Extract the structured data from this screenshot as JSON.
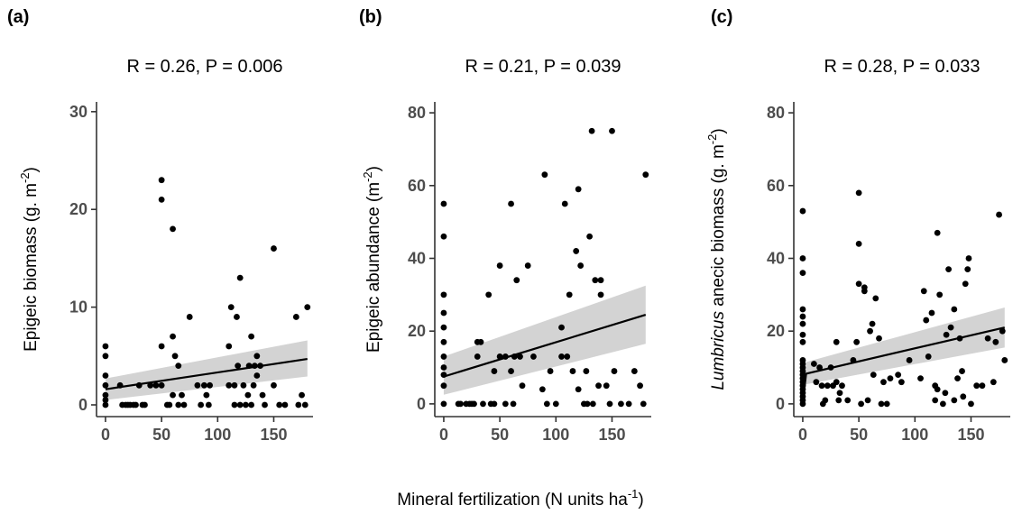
{
  "figure": {
    "x_axis_title": "Mineral fertilization (N units ha",
    "x_axis_title_sup": "-1",
    "x_axis_title_end": ")"
  },
  "chart_data": [
    {
      "type": "scatter",
      "panel_label": "(a)",
      "stat_text": "R = 0.26, P = 0.006",
      "ylabel_prefix": "",
      "ylabel_text": "Epigeic biomass (g. m",
      "ylabel_sup": "-2",
      "ylabel_end": ")",
      "xlim": [
        -8,
        185
      ],
      "ylim": [
        -1.2,
        31
      ],
      "x_ticks": [
        0,
        50,
        100,
        150
      ],
      "y_ticks": [
        0,
        10,
        20,
        30
      ],
      "fit": {
        "x": [
          0,
          180
        ],
        "y": [
          1.6,
          4.7
        ],
        "lower": [
          0.5,
          2.9
        ],
        "upper": [
          2.7,
          6.6
        ]
      },
      "points": [
        [
          0,
          0
        ],
        [
          0,
          0.5
        ],
        [
          0,
          1
        ],
        [
          0,
          2
        ],
        [
          0,
          3
        ],
        [
          0,
          5
        ],
        [
          0,
          6
        ],
        [
          13,
          2
        ],
        [
          15,
          0
        ],
        [
          18,
          0
        ],
        [
          20,
          0
        ],
        [
          22,
          0
        ],
        [
          25,
          0
        ],
        [
          27,
          0
        ],
        [
          30,
          2
        ],
        [
          33,
          0
        ],
        [
          35,
          0
        ],
        [
          40,
          2
        ],
        [
          45,
          2
        ],
        [
          50,
          2
        ],
        [
          50,
          6
        ],
        [
          50,
          21
        ],
        [
          50,
          23
        ],
        [
          55,
          0
        ],
        [
          57,
          0
        ],
        [
          60,
          18
        ],
        [
          60,
          7
        ],
        [
          60,
          1
        ],
        [
          62,
          5
        ],
        [
          65,
          4
        ],
        [
          65,
          0
        ],
        [
          68,
          1
        ],
        [
          70,
          0
        ],
        [
          75,
          9
        ],
        [
          82,
          2
        ],
        [
          85,
          0
        ],
        [
          88,
          2
        ],
        [
          90,
          1
        ],
        [
          92,
          0
        ],
        [
          93,
          2
        ],
        [
          110,
          2
        ],
        [
          110,
          6
        ],
        [
          112,
          10
        ],
        [
          115,
          2
        ],
        [
          115,
          0
        ],
        [
          117,
          9
        ],
        [
          118,
          4
        ],
        [
          120,
          13
        ],
        [
          120,
          0
        ],
        [
          123,
          2
        ],
        [
          125,
          0
        ],
        [
          127,
          1
        ],
        [
          128,
          4
        ],
        [
          130,
          7
        ],
        [
          130,
          0
        ],
        [
          132,
          2
        ],
        [
          133,
          4
        ],
        [
          135,
          3
        ],
        [
          135,
          5
        ],
        [
          138,
          4
        ],
        [
          140,
          1
        ],
        [
          142,
          0
        ],
        [
          150,
          16
        ],
        [
          150,
          2
        ],
        [
          155,
          0
        ],
        [
          160,
          0
        ],
        [
          170,
          9
        ],
        [
          172,
          0
        ],
        [
          175,
          1
        ],
        [
          178,
          0
        ],
        [
          180,
          10
        ]
      ]
    },
    {
      "type": "scatter",
      "panel_label": "(b)",
      "stat_text": "R = 0.21, P = 0.039",
      "ylabel_prefix": "",
      "ylabel_text": "Epigeic abundance (m",
      "ylabel_sup": "-2",
      "ylabel_end": ")",
      "xlim": [
        -8,
        185
      ],
      "ylim": [
        -3.5,
        83
      ],
      "x_ticks": [
        0,
        50,
        100,
        150
      ],
      "y_ticks": [
        0,
        20,
        40,
        60,
        80
      ],
      "fit": {
        "x": [
          0,
          180
        ],
        "y": [
          7.5,
          24.5
        ],
        "lower": [
          2.5,
          16.5
        ],
        "upper": [
          13,
          32.5
        ]
      },
      "points": [
        [
          0,
          0
        ],
        [
          0,
          5
        ],
        [
          0,
          8
        ],
        [
          0,
          10
        ],
        [
          0,
          13
        ],
        [
          0,
          17
        ],
        [
          0,
          21
        ],
        [
          0,
          25
        ],
        [
          0,
          30
        ],
        [
          0,
          46
        ],
        [
          0,
          55
        ],
        [
          13,
          0
        ],
        [
          15,
          0
        ],
        [
          20,
          0
        ],
        [
          23,
          0
        ],
        [
          25,
          0
        ],
        [
          27,
          0
        ],
        [
          30,
          13
        ],
        [
          30,
          17
        ],
        [
          33,
          17
        ],
        [
          35,
          0
        ],
        [
          40,
          30
        ],
        [
          42,
          0
        ],
        [
          45,
          9
        ],
        [
          45,
          0
        ],
        [
          50,
          38
        ],
        [
          50,
          13
        ],
        [
          55,
          13
        ],
        [
          55,
          0
        ],
        [
          60,
          55
        ],
        [
          60,
          9
        ],
        [
          62,
          0
        ],
        [
          63,
          13
        ],
        [
          65,
          34
        ],
        [
          68,
          13
        ],
        [
          70,
          5
        ],
        [
          75,
          38
        ],
        [
          80,
          13
        ],
        [
          88,
          4
        ],
        [
          90,
          63
        ],
        [
          92,
          0
        ],
        [
          95,
          9
        ],
        [
          100,
          0
        ],
        [
          105,
          21
        ],
        [
          105,
          13
        ],
        [
          108,
          55
        ],
        [
          110,
          13
        ],
        [
          112,
          30
        ],
        [
          115,
          9
        ],
        [
          118,
          42
        ],
        [
          120,
          59
        ],
        [
          120,
          4
        ],
        [
          122,
          38
        ],
        [
          125,
          0
        ],
        [
          127,
          9
        ],
        [
          128,
          0
        ],
        [
          130,
          46
        ],
        [
          132,
          75
        ],
        [
          133,
          0
        ],
        [
          135,
          34
        ],
        [
          138,
          5
        ],
        [
          140,
          30
        ],
        [
          140,
          34
        ],
        [
          145,
          5
        ],
        [
          148,
          0
        ],
        [
          150,
          75
        ],
        [
          152,
          9
        ],
        [
          158,
          0
        ],
        [
          165,
          0
        ],
        [
          170,
          9
        ],
        [
          175,
          5
        ],
        [
          178,
          0
        ],
        [
          180,
          63
        ]
      ]
    },
    {
      "type": "scatter",
      "panel_label": "(c)",
      "stat_text": "R = 0.28, P = 0.033",
      "ylabel_prefix": "Lumbricus",
      "ylabel_text": " anecic biomass (g. m",
      "ylabel_sup": "-2",
      "ylabel_end": ")",
      "xlim": [
        -8,
        185
      ],
      "ylim": [
        -3.5,
        83
      ],
      "x_ticks": [
        0,
        50,
        100,
        150
      ],
      "y_ticks": [
        0,
        20,
        40,
        60,
        80
      ],
      "fit": {
        "x": [
          0,
          3,
          180
        ],
        "y": [
          0.5,
          8.3,
          21
        ],
        "lower": [
          0,
          5.4,
          15.5
        ],
        "upper": [
          3,
          11.5,
          26.5
        ]
      },
      "points": [
        [
          0,
          0
        ],
        [
          0,
          1
        ],
        [
          0,
          2
        ],
        [
          0,
          3
        ],
        [
          0,
          4
        ],
        [
          0,
          5
        ],
        [
          0,
          6
        ],
        [
          0,
          7
        ],
        [
          0,
          8
        ],
        [
          0,
          9
        ],
        [
          0,
          10
        ],
        [
          0,
          11
        ],
        [
          0,
          12
        ],
        [
          0,
          17
        ],
        [
          0,
          19
        ],
        [
          0,
          22
        ],
        [
          0,
          24
        ],
        [
          0,
          26
        ],
        [
          0,
          36
        ],
        [
          0,
          40
        ],
        [
          0,
          53
        ],
        [
          10,
          11
        ],
        [
          12,
          6
        ],
        [
          15,
          10
        ],
        [
          17,
          5
        ],
        [
          18,
          0
        ],
        [
          20,
          1
        ],
        [
          22,
          5
        ],
        [
          25,
          10
        ],
        [
          27,
          5
        ],
        [
          30,
          17
        ],
        [
          30,
          6
        ],
        [
          32,
          1
        ],
        [
          33,
          3
        ],
        [
          35,
          5
        ],
        [
          40,
          1
        ],
        [
          45,
          12
        ],
        [
          48,
          17
        ],
        [
          50,
          33
        ],
        [
          50,
          44
        ],
        [
          50,
          58
        ],
        [
          52,
          0
        ],
        [
          55,
          32
        ],
        [
          55,
          31
        ],
        [
          58,
          1
        ],
        [
          60,
          20
        ],
        [
          62,
          22
        ],
        [
          63,
          8
        ],
        [
          65,
          29
        ],
        [
          68,
          18
        ],
        [
          70,
          0
        ],
        [
          72,
          6
        ],
        [
          75,
          0
        ],
        [
          78,
          7
        ],
        [
          85,
          8
        ],
        [
          88,
          6
        ],
        [
          95,
          12
        ],
        [
          105,
          7
        ],
        [
          108,
          31
        ],
        [
          110,
          23
        ],
        [
          112,
          13
        ],
        [
          115,
          25
        ],
        [
          118,
          5
        ],
        [
          118,
          1
        ],
        [
          120,
          47
        ],
        [
          120,
          4
        ],
        [
          122,
          30
        ],
        [
          125,
          0
        ],
        [
          127,
          3
        ],
        [
          128,
          19
        ],
        [
          130,
          37
        ],
        [
          132,
          21
        ],
        [
          135,
          26
        ],
        [
          135,
          1
        ],
        [
          138,
          7
        ],
        [
          140,
          18
        ],
        [
          142,
          9
        ],
        [
          143,
          2
        ],
        [
          145,
          33
        ],
        [
          147,
          37
        ],
        [
          148,
          40
        ],
        [
          150,
          0
        ],
        [
          155,
          5
        ],
        [
          160,
          5
        ],
        [
          165,
          18
        ],
        [
          170,
          6
        ],
        [
          172,
          17
        ],
        [
          175,
          52
        ],
        [
          178,
          20
        ],
        [
          180,
          12
        ]
      ]
    }
  ]
}
